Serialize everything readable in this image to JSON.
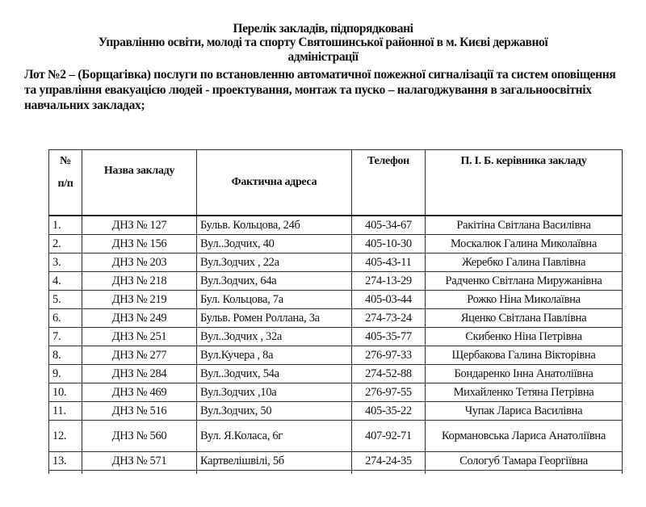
{
  "document": {
    "title_lines": [
      "Перелік закладів, підпорядковані",
      "Управлінню освіти, молоді та спорту Святошинської районної в м. Києві державної",
      "адміністрації"
    ],
    "lot_text": "Лот №2 – (Борщагівка) послуги по встановленню автоматичної пожежної сигналізації та систем оповіщення та управління евакуацією людей  -  проектування,  монтаж та пуско – налагоджування в загальноосвітніх навчальних закладах;"
  },
  "table": {
    "headers": {
      "num_line1": "№",
      "num_line2": "п/п",
      "name": "Назва закладу",
      "address": "Фактична адреса",
      "phone": "Телефон",
      "head": "П. І. Б. керівника закладу"
    },
    "rows": [
      {
        "num": "1.",
        "name": "ДНЗ № 127",
        "address": "Бульв. Кольцова, 24б",
        "phone": "405-34-67",
        "head": "Ракітіна Світлана Василівна"
      },
      {
        "num": "2.",
        "name": "ДНЗ № 156",
        "address": "Вул..Зодчих, 40",
        "phone": "405-10-30",
        "head": "Москалюк Галина Миколаївна"
      },
      {
        "num": "3.",
        "name": "ДНЗ № 203",
        "address": "Вул.Зодчих , 22а",
        "phone": "405-43-11",
        "head": "Жеребко Галина Павлівна"
      },
      {
        "num": "4.",
        "name": "ДНЗ № 218",
        "address": "Вул.Зодчих, 64а",
        "phone": "274-13-29",
        "head": "Радченко Світлана Миружанівна"
      },
      {
        "num": "5.",
        "name": "ДНЗ № 219",
        "address": "Бул. Кольцова, 7а",
        "phone": "405-03-44",
        "head": "Рожко Ніна Миколаївна"
      },
      {
        "num": "6.",
        "name": "ДНЗ № 249",
        "address": "Бульв. Ромен Роллана, 3а",
        "phone": "274-73-24",
        "head": "Яценко Світлана Павлівна"
      },
      {
        "num": "7.",
        "name": "ДНЗ № 251",
        "address": "Вул..Зодчих , 32а",
        "phone": "405-35-77",
        "head": "Скибенко  Ніна Петрівна"
      },
      {
        "num": "8.",
        "name": "ДНЗ № 277",
        "address": "Вул.Кучера , 8а",
        "phone": "276-97-33",
        "head": "Щербакова  Галина Вікторівна"
      },
      {
        "num": "9.",
        "name": "ДНЗ № 284",
        "address": "Вул..Зодчих, 54а",
        "phone": "274-52-88",
        "head": "Бондаренко Інна Анатоліївна"
      },
      {
        "num": "10.",
        "name": "ДНЗ № 469",
        "address": "Вул.Зодчих ,10а",
        "phone": "276-97-55",
        "head": "Михайленко Тетяна Петрівна"
      },
      {
        "num": "11.",
        "name": "ДНЗ № 516",
        "address": "Вул.Зодчих, 50",
        "phone": "405-35-22",
        "head": "Чупак Лариса Василівна"
      },
      {
        "num": "12.",
        "name": "ДНЗ № 560",
        "address": "Вул. Я.Коласа, 6г",
        "phone": "407-92-71",
        "head": "Кормановська Лариса Анатоліївна"
      },
      {
        "num": "13.",
        "name": "ДНЗ № 571",
        "address": "Картвелішвілі, 5б",
        "phone": "274-24-35",
        "head": "Сологуб Тамара Георгіївна"
      }
    ]
  }
}
